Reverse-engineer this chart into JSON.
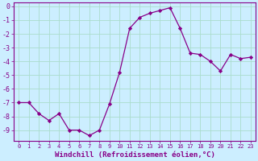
{
  "x": [
    0,
    1,
    2,
    3,
    4,
    5,
    6,
    7,
    8,
    9,
    10,
    11,
    12,
    13,
    14,
    15,
    16,
    17,
    18,
    19,
    20,
    21,
    22,
    23
  ],
  "y": [
    -7.0,
    -7.0,
    -7.8,
    -8.3,
    -7.8,
    -9.0,
    -9.0,
    -9.4,
    -9.0,
    -7.1,
    -4.8,
    -1.6,
    -0.8,
    -0.5,
    -0.3,
    -0.1,
    -1.6,
    -3.4,
    -3.5,
    -4.0,
    -4.7,
    -3.5,
    -3.8,
    -3.7
  ],
  "line_color": "#880088",
  "marker": "D",
  "marker_size": 2.2,
  "bg_color": "#cceeff",
  "grid_color": "#aaddcc",
  "xlabel": "Windchill (Refroidissement éolien,°C)",
  "xlim": [
    -0.5,
    23.5
  ],
  "ylim": [
    -9.8,
    0.3
  ],
  "yticks": [
    0,
    -1,
    -2,
    -3,
    -4,
    -5,
    -6,
    -7,
    -8,
    -9
  ],
  "xticks": [
    0,
    1,
    2,
    3,
    4,
    5,
    6,
    7,
    8,
    9,
    10,
    11,
    12,
    13,
    14,
    15,
    16,
    17,
    18,
    19,
    20,
    21,
    22,
    23
  ],
  "tick_color": "#880088",
  "label_color": "#880088",
  "xlabel_fontsize": 6.5,
  "xtick_fontsize": 5.0,
  "ytick_fontsize": 6.0
}
